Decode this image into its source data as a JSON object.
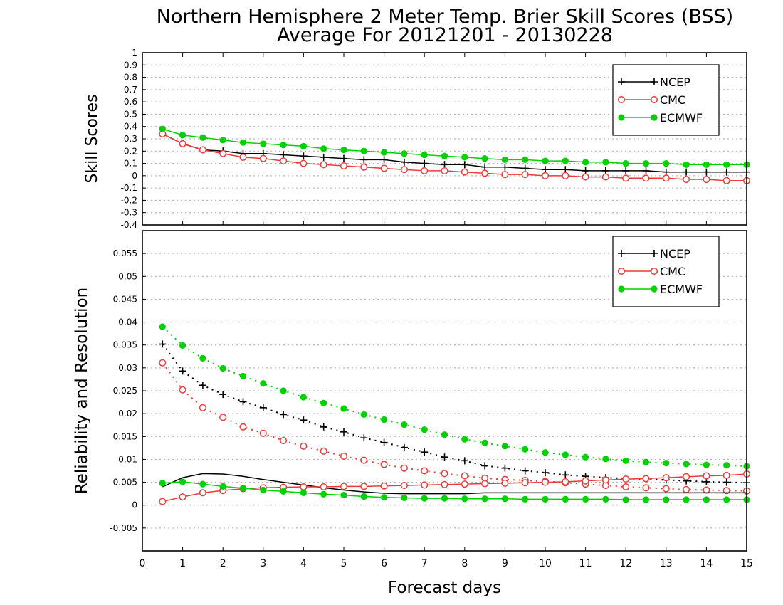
{
  "title": {
    "line1": "Northern Hemisphere 2 Meter Temp. Brier Skill Scores (BSS)",
    "line2": "Average For 20121201 - 20130228"
  },
  "colors": {
    "NCEP": "#000000",
    "CMC": "#ee3a3a",
    "ECMWF": "#00d200",
    "grid": "#aaaaaa",
    "background": "#ffffff"
  },
  "chart_data": [
    {
      "type": "line",
      "panel": "top",
      "ylabel": "Skill Scores",
      "xlabel": "",
      "xlim": [
        0,
        15
      ],
      "ylim": [
        -0.4,
        1
      ],
      "yticks": [
        "-0.4",
        "-0.3",
        "-0.2",
        "-0.1",
        "0",
        "0.1",
        "0.2",
        "0.3",
        "0.4",
        "0.5",
        "0.6",
        "0.7",
        "0.8",
        "0.9",
        "1"
      ],
      "grid": true,
      "legend_position": "top-right",
      "x": [
        0.5,
        1,
        1.5,
        2,
        2.5,
        3,
        3.5,
        4,
        4.5,
        5,
        5.5,
        6,
        6.5,
        7,
        7.5,
        8,
        8.5,
        9,
        9.5,
        10,
        10.5,
        11,
        11.5,
        12,
        12.5,
        13,
        13.5,
        14,
        14.5,
        15
      ],
      "series": [
        {
          "name": "NCEP",
          "marker": "plus",
          "style": "solid",
          "values": [
            0.34,
            0.26,
            0.21,
            0.2,
            0.18,
            0.18,
            0.17,
            0.16,
            0.15,
            0.14,
            0.13,
            0.13,
            0.11,
            0.1,
            0.09,
            0.09,
            0.07,
            0.07,
            0.06,
            0.05,
            0.05,
            0.04,
            0.04,
            0.04,
            0.04,
            0.03,
            0.03,
            0.03,
            0.03,
            0.03
          ]
        },
        {
          "name": "CMC",
          "marker": "open-circle",
          "style": "solid",
          "values": [
            0.34,
            0.26,
            0.21,
            0.18,
            0.15,
            0.14,
            0.12,
            0.1,
            0.09,
            0.08,
            0.07,
            0.06,
            0.05,
            0.04,
            0.04,
            0.03,
            0.02,
            0.01,
            0.01,
            0.0,
            0.0,
            -0.01,
            -0.01,
            -0.02,
            -0.02,
            -0.02,
            -0.03,
            -0.03,
            -0.04,
            -0.04
          ]
        },
        {
          "name": "ECMWF",
          "marker": "filled-circle",
          "style": "solid",
          "values": [
            0.38,
            0.33,
            0.31,
            0.29,
            0.27,
            0.26,
            0.25,
            0.24,
            0.22,
            0.21,
            0.2,
            0.19,
            0.18,
            0.17,
            0.16,
            0.15,
            0.14,
            0.13,
            0.13,
            0.12,
            0.12,
            0.11,
            0.11,
            0.1,
            0.1,
            0.1,
            0.09,
            0.09,
            0.09,
            0.09
          ]
        }
      ]
    },
    {
      "type": "line",
      "panel": "bottom",
      "ylabel": "Reliability and Resolution",
      "xlabel": "Forecast days",
      "xlim": [
        0,
        15
      ],
      "ylim": [
        -0.01,
        0.06
      ],
      "yticks": [
        "-0.005",
        "0",
        "0.005",
        "0.01",
        "0.015",
        "0.02",
        "0.025",
        "0.03",
        "0.035",
        "0.04",
        "0.045",
        "0.05",
        "0.055"
      ],
      "xticks": [
        "0",
        "1",
        "2",
        "3",
        "4",
        "5",
        "6",
        "7",
        "8",
        "9",
        "10",
        "11",
        "12",
        "13",
        "14",
        "15"
      ],
      "grid": true,
      "legend_position": "top-right",
      "x": [
        0.5,
        1,
        1.5,
        2,
        2.5,
        3,
        3.5,
        4,
        4.5,
        5,
        5.5,
        6,
        6.5,
        7,
        7.5,
        8,
        8.5,
        9,
        9.5,
        10,
        10.5,
        11,
        11.5,
        12,
        12.5,
        13,
        13.5,
        14,
        14.5,
        15
      ],
      "series": [
        {
          "name": "NCEP",
          "marker": "plus",
          "style": "dotted",
          "values": [
            0.0352,
            0.0293,
            0.0262,
            0.0242,
            0.0226,
            0.0213,
            0.0198,
            0.0186,
            0.0171,
            0.016,
            0.0147,
            0.0137,
            0.0126,
            0.0116,
            0.0105,
            0.0097,
            0.0086,
            0.0081,
            0.0075,
            0.0071,
            0.0066,
            0.0063,
            0.006,
            0.0058,
            0.0057,
            0.0055,
            0.0053,
            0.0051,
            0.005,
            0.0049
          ]
        },
        {
          "name": "CMC",
          "marker": "open-circle",
          "style": "dotted",
          "values": [
            0.0311,
            0.0252,
            0.0213,
            0.0192,
            0.0171,
            0.0157,
            0.0141,
            0.0129,
            0.0118,
            0.0107,
            0.0098,
            0.0089,
            0.0081,
            0.0075,
            0.0069,
            0.0064,
            0.0059,
            0.0056,
            0.0054,
            0.0052,
            0.0049,
            0.0046,
            0.0043,
            0.004,
            0.0038,
            0.0036,
            0.0034,
            0.0033,
            0.0032,
            0.0031
          ]
        },
        {
          "name": "ECMWF",
          "marker": "filled-circle",
          "style": "dotted",
          "values": [
            0.039,
            0.0349,
            0.0321,
            0.0299,
            0.0282,
            0.0266,
            0.025,
            0.0236,
            0.0223,
            0.0211,
            0.0198,
            0.0187,
            0.0176,
            0.0165,
            0.0154,
            0.0144,
            0.0136,
            0.0129,
            0.0122,
            0.0115,
            0.011,
            0.0105,
            0.0101,
            0.0097,
            0.0094,
            0.0092,
            0.009,
            0.0088,
            0.0087,
            0.0085
          ]
        },
        {
          "name": "NCEP",
          "marker": "none",
          "style": "solid",
          "values": [
            0.004,
            0.006,
            0.0069,
            0.0068,
            0.0063,
            0.0056,
            0.005,
            0.0044,
            0.0038,
            0.0033,
            0.0029,
            0.0026,
            0.0025,
            0.0025,
            0.0025,
            0.0025,
            0.0027,
            0.0027,
            0.0027,
            0.0027,
            0.0027,
            0.0027,
            0.0027,
            0.0027,
            0.0027,
            0.0027,
            0.0027,
            0.0027,
            0.0027,
            0.0027
          ]
        },
        {
          "name": "CMC",
          "marker": "open-circle",
          "style": "solid",
          "values": [
            0.0008,
            0.0018,
            0.0027,
            0.0032,
            0.0036,
            0.0038,
            0.0039,
            0.004,
            0.004,
            0.0041,
            0.0041,
            0.0042,
            0.0043,
            0.0044,
            0.0045,
            0.0046,
            0.0047,
            0.0048,
            0.0049,
            0.005,
            0.0051,
            0.0053,
            0.0055,
            0.0057,
            0.0058,
            0.006,
            0.0062,
            0.0064,
            0.0065,
            0.0068
          ]
        },
        {
          "name": "ECMWF",
          "marker": "filled-circle",
          "style": "solid",
          "values": [
            0.0048,
            0.0051,
            0.0046,
            0.0041,
            0.0037,
            0.0033,
            0.003,
            0.0027,
            0.0024,
            0.0022,
            0.0019,
            0.0017,
            0.0016,
            0.0015,
            0.0015,
            0.0014,
            0.0014,
            0.0014,
            0.0013,
            0.0013,
            0.0013,
            0.0013,
            0.0013,
            0.0012,
            0.0012,
            0.0012,
            0.0012,
            0.0012,
            0.0012,
            0.0012
          ]
        }
      ]
    }
  ],
  "legend": {
    "entries": [
      {
        "name": "NCEP",
        "marker": "plus"
      },
      {
        "name": "CMC",
        "marker": "open-circle"
      },
      {
        "name": "ECMWF",
        "marker": "filled-circle"
      }
    ]
  }
}
